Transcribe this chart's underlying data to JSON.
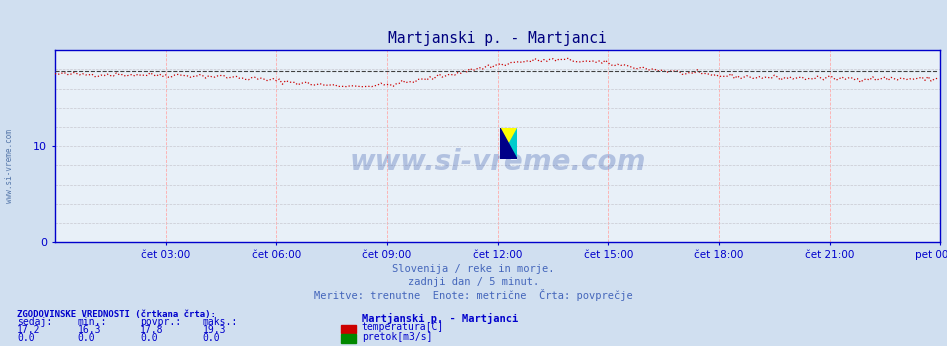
{
  "title": "Martjanski p. - Martjanci",
  "title_color": "#000080",
  "bg_color": "#d0dff0",
  "plot_bg_color": "#e8f0f8",
  "x_labels": [
    "čet 03:00",
    "čet 06:00",
    "čet 09:00",
    "čet 12:00",
    "čet 15:00",
    "čet 18:00",
    "čet 21:00",
    "pet 00:00"
  ],
  "y_min": 0,
  "y_max": 20,
  "y_ticks": [
    0,
    10
  ],
  "axis_color": "#0000cc",
  "temp_color": "#cc0000",
  "avg_color": "#404040",
  "subtitle1": "Slovenija / reke in morje.",
  "subtitle2": "zadnji dan / 5 minut.",
  "subtitle3": "Meritve: trenutne  Enote: metrične  Črta: povprečje",
  "subtitle_color": "#4466bb",
  "watermark": "www.si-vreme.com",
  "watermark_color": "#3355aa",
  "legend_title": "Martjanski p. - Martjanci",
  "legend_temp": "temperatura[C]",
  "legend_flow": "pretok[m3/s]",
  "legend_temp_color": "#cc0000",
  "legend_flow_color": "#008800",
  "stats_header": "ZGODOVINSKE VREDNOSTI (črtkana črta):",
  "stats_cols": [
    "sedaj:",
    "min.:",
    "povpr.:",
    "maks.:"
  ],
  "stats_temp": [
    17.2,
    16.3,
    17.8,
    19.3
  ],
  "stats_flow": [
    0.0,
    0.0,
    0.0,
    0.0
  ],
  "stats_color": "#0000cc",
  "n_points": 288,
  "temp_min": 16.3,
  "temp_max": 19.3,
  "temp_avg": 17.8,
  "temp_current": 17.2
}
